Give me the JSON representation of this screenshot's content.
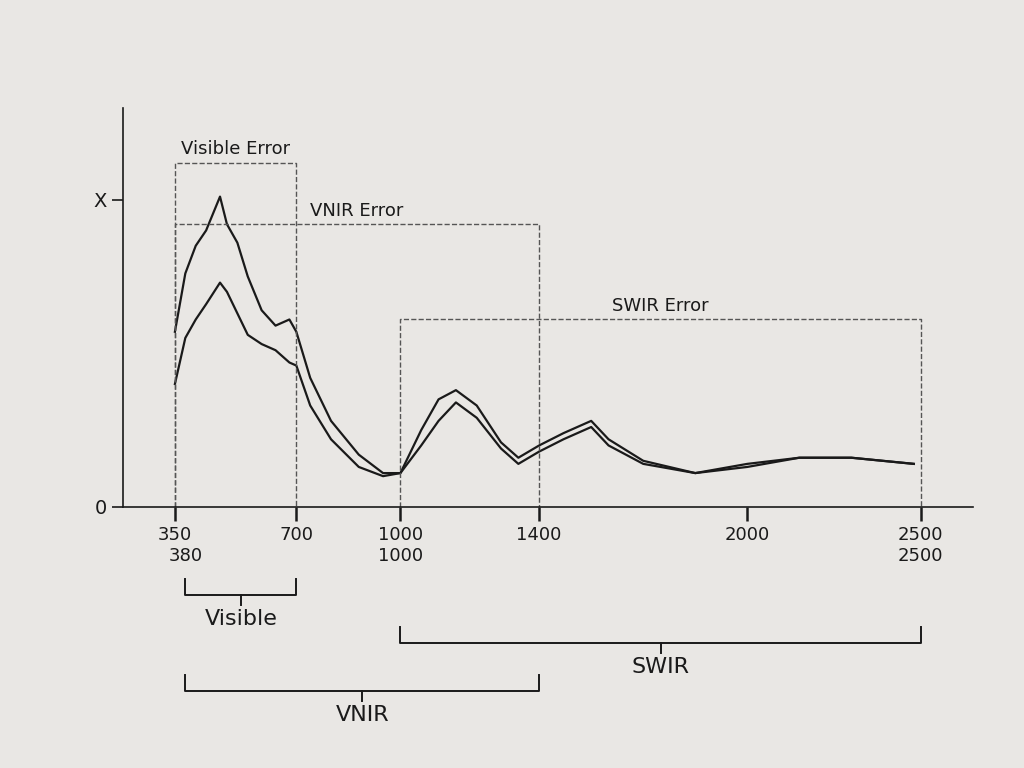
{
  "chart_data": {
    "type": "line",
    "x": [
      350,
      380,
      410,
      440,
      480,
      500,
      530,
      560,
      600,
      640,
      680,
      700,
      740,
      800,
      880,
      950,
      1000,
      1060,
      1110,
      1160,
      1220,
      1290,
      1340,
      1400,
      1470,
      1550,
      1600,
      1700,
      1850,
      2000,
      2150,
      2300,
      2480
    ],
    "series": [
      {
        "color": "#1a1a1a",
        "values": [
          0.57,
          0.76,
          0.85,
          0.9,
          1.01,
          0.92,
          0.86,
          0.75,
          0.64,
          0.59,
          0.61,
          0.57,
          0.42,
          0.28,
          0.17,
          0.11,
          0.11,
          0.25,
          0.35,
          0.38,
          0.33,
          0.21,
          0.16,
          0.2,
          0.24,
          0.28,
          0.22,
          0.15,
          0.11,
          0.14,
          0.16,
          0.16,
          0.14
        ]
      },
      {
        "color": "#1a1a1a",
        "values": [
          0.4,
          0.55,
          0.61,
          0.66,
          0.73,
          0.7,
          0.63,
          0.56,
          0.53,
          0.51,
          0.47,
          0.46,
          0.33,
          0.22,
          0.13,
          0.1,
          0.11,
          0.2,
          0.28,
          0.34,
          0.29,
          0.19,
          0.14,
          0.18,
          0.22,
          0.26,
          0.2,
          0.14,
          0.11,
          0.13,
          0.16,
          0.16,
          0.14
        ]
      }
    ],
    "xlim": [
      200,
      2650
    ],
    "ylim": [
      0,
      1.3
    ],
    "xticks": [
      350,
      700,
      1000,
      1400,
      2000,
      2500
    ],
    "secondary_xticks": [
      380,
      1000,
      2500
    ],
    "yticks": [
      0,
      {
        "value": 1,
        "label": "X"
      }
    ],
    "error_bands": [
      {
        "label": "Visible Error",
        "x": [
          350,
          700
        ],
        "value": 1.12
      },
      {
        "label": "VNIR Error",
        "x": [
          350,
          1400
        ],
        "value": 0.92
      },
      {
        "label": "SWIR Error",
        "x": [
          1000,
          2500
        ],
        "value": 0.61
      }
    ],
    "ranges": [
      {
        "label": "Visible",
        "x": [
          380,
          700
        ]
      },
      {
        "label": "VNIR",
        "x": [
          380,
          1400
        ]
      },
      {
        "label": "SWIR",
        "x": [
          1000,
          2500
        ]
      }
    ]
  }
}
